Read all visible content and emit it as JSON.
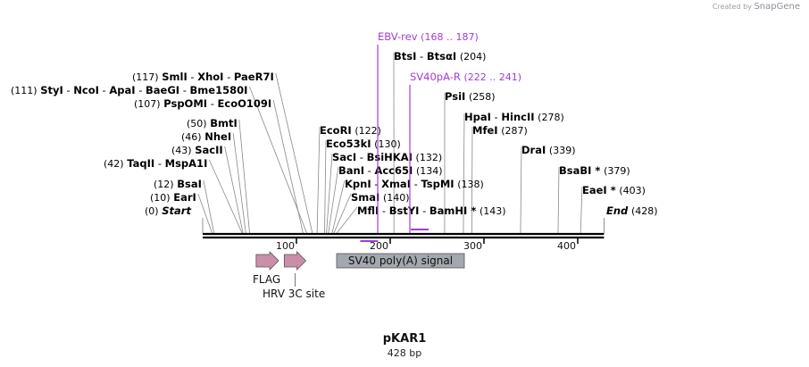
{
  "plasmid": {
    "name": "pKAR1",
    "length_label": "428 bp",
    "length_bp": 428
  },
  "watermark": {
    "prefix": "Created by",
    "brand": "SnapGene"
  },
  "ruler": {
    "ticks": [
      100,
      200,
      300,
      400
    ],
    "labels": [
      "100",
      "200",
      "300",
      "400"
    ]
  },
  "primers": [
    {
      "name": "EBV-rev",
      "range": "(168 .. 187)",
      "start": 168,
      "end": 187,
      "color": "#a23cd6"
    },
    {
      "name": "SV40pA-R",
      "range": "(222 .. 241)",
      "start": 222,
      "end": 241,
      "color": "#a23cd6"
    }
  ],
  "enzymes": [
    {
      "pos": "(117)",
      "bp": 117,
      "names": [
        "SmlI",
        "XhoI",
        "PaeR7I"
      ],
      "star": false
    },
    {
      "pos": "(111)",
      "bp": 111,
      "names": [
        "StyI",
        "NcoI",
        "ApaI",
        "BaeGI",
        "Bme1580I"
      ],
      "star": false
    },
    {
      "pos": "(107)",
      "bp": 107,
      "names": [
        "PspOMI",
        "EcoO109I"
      ],
      "star": false
    },
    {
      "pos": "(50)",
      "bp": 50,
      "names": [
        "BmtI"
      ],
      "star": false
    },
    {
      "pos": "(46)",
      "bp": 46,
      "names": [
        "NheI"
      ],
      "star": false
    },
    {
      "pos": "(43)",
      "bp": 43,
      "names": [
        "SacII"
      ],
      "star": false
    },
    {
      "pos": "(42)",
      "bp": 42,
      "names": [
        "TaqII",
        "MspA1I"
      ],
      "star": false
    },
    {
      "pos": "(12)",
      "bp": 12,
      "names": [
        "BsaI"
      ],
      "star": false
    },
    {
      "pos": "(10)",
      "bp": 10,
      "names": [
        "EarI"
      ],
      "star": false
    },
    {
      "pos": "(0)",
      "bp": 0,
      "names": [
        "Start"
      ],
      "star": false,
      "italic": true
    },
    {
      "pos": "(122)",
      "bp": 122,
      "names": [
        "EcoRI"
      ],
      "star": false
    },
    {
      "pos": "(130)",
      "bp": 130,
      "names": [
        "Eco53kI"
      ],
      "star": false
    },
    {
      "pos": "(132)",
      "bp": 132,
      "names": [
        "SacI",
        "BsiHKAI"
      ],
      "star": false
    },
    {
      "pos": "(134)",
      "bp": 134,
      "names": [
        "BanI",
        "Acc65I"
      ],
      "star": false
    },
    {
      "pos": "(138)",
      "bp": 138,
      "names": [
        "KpnI",
        "XmaI",
        "TspMI"
      ],
      "star": false
    },
    {
      "pos": "(140)",
      "bp": 140,
      "names": [
        "SmaI"
      ],
      "star": false
    },
    {
      "pos": "(143)",
      "bp": 143,
      "names": [
        "MflI",
        "BstYI",
        "BamHI"
      ],
      "star": true
    },
    {
      "pos": "(204)",
      "bp": 204,
      "names": [
        "BtsI",
        "BtsαI"
      ],
      "star": false
    },
    {
      "pos": "(258)",
      "bp": 258,
      "names": [
        "PsiI"
      ],
      "star": false
    },
    {
      "pos": "(278)",
      "bp": 278,
      "names": [
        "HpaI",
        "HincII"
      ],
      "star": false
    },
    {
      "pos": "(287)",
      "bp": 287,
      "names": [
        "MfeI"
      ],
      "star": false
    },
    {
      "pos": "(339)",
      "bp": 339,
      "names": [
        "DraI"
      ],
      "star": false
    },
    {
      "pos": "(379)",
      "bp": 379,
      "names": [
        "BsaBI"
      ],
      "star": true
    },
    {
      "pos": "(403)",
      "bp": 403,
      "names": [
        "EaeI"
      ],
      "star": true
    },
    {
      "pos": "(428)",
      "bp": 428,
      "names": [
        "End"
      ],
      "star": false,
      "italic": true
    }
  ],
  "features": [
    {
      "name": "FLAG",
      "type": "arrow",
      "start": 57,
      "end": 81,
      "color": "#c98fa8"
    },
    {
      "name": "HRV 3C site",
      "type": "arrow",
      "start": 87,
      "end": 110,
      "color": "#c98fa8"
    },
    {
      "name": "SV40 poly(A) signal",
      "type": "box",
      "start": 144,
      "end": 278,
      "color": "#a3a7ae"
    }
  ],
  "colors": {
    "backbone": "#000000",
    "primer": "#a23cd6",
    "feature_arrow": "#c98fa8",
    "feature_box": "#a3a7ae"
  }
}
